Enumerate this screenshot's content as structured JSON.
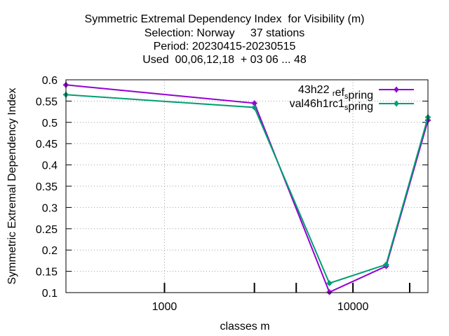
{
  "chart_data": {
    "type": "line",
    "title_lines": [
      "Symmetric Extremal Dependency Index  for Visibility (m)",
      "Selection: Norway     37 stations",
      "Period: 20230415-20230515",
      "Used  00,06,12,18  + 03 06 ... 48"
    ],
    "xlabel": "classes m",
    "ylabel": "Symmetric Extremal Dependency Index",
    "x_scale": "log",
    "xlim": [
      300,
      25000
    ],
    "ylim": [
      0.1,
      0.6
    ],
    "x_ticks": [
      1000,
      10000
    ],
    "x_tick_labels": [
      "1000",
      "10000"
    ],
    "y_ticks": [
      0.1,
      0.15,
      0.2,
      0.25,
      0.3,
      0.35,
      0.4,
      0.45,
      0.5,
      0.55,
      0.6
    ],
    "y_tick_labels": [
      "0.1",
      "0.15",
      "0.2",
      "0.25",
      "0.3",
      "0.35",
      "0.4",
      "0.45",
      "0.5",
      "0.55",
      "0.6"
    ],
    "x_minor_ticks": [
      3000,
      5000,
      20000
    ],
    "grid": true,
    "legend_position": "top-right",
    "x": [
      300,
      3000,
      7500,
      15000,
      25000
    ],
    "series": [
      {
        "name": "43h22 ref_spring",
        "legend_base": "43h22 ",
        "legend_sub1": "r",
        "legend_mid": "ef",
        "legend_sub2": "s",
        "legend_end": "pring",
        "color": "#9400d3",
        "values": [
          0.588,
          0.545,
          0.101,
          0.162,
          0.505
        ]
      },
      {
        "name": "val46h1rc1_spring",
        "legend_base": "val46h1rc1",
        "legend_sub1": "s",
        "legend_mid": "",
        "legend_sub2": "",
        "legend_end": "pring",
        "color": "#009e73",
        "values": [
          0.565,
          0.535,
          0.122,
          0.166,
          0.512
        ]
      }
    ]
  }
}
